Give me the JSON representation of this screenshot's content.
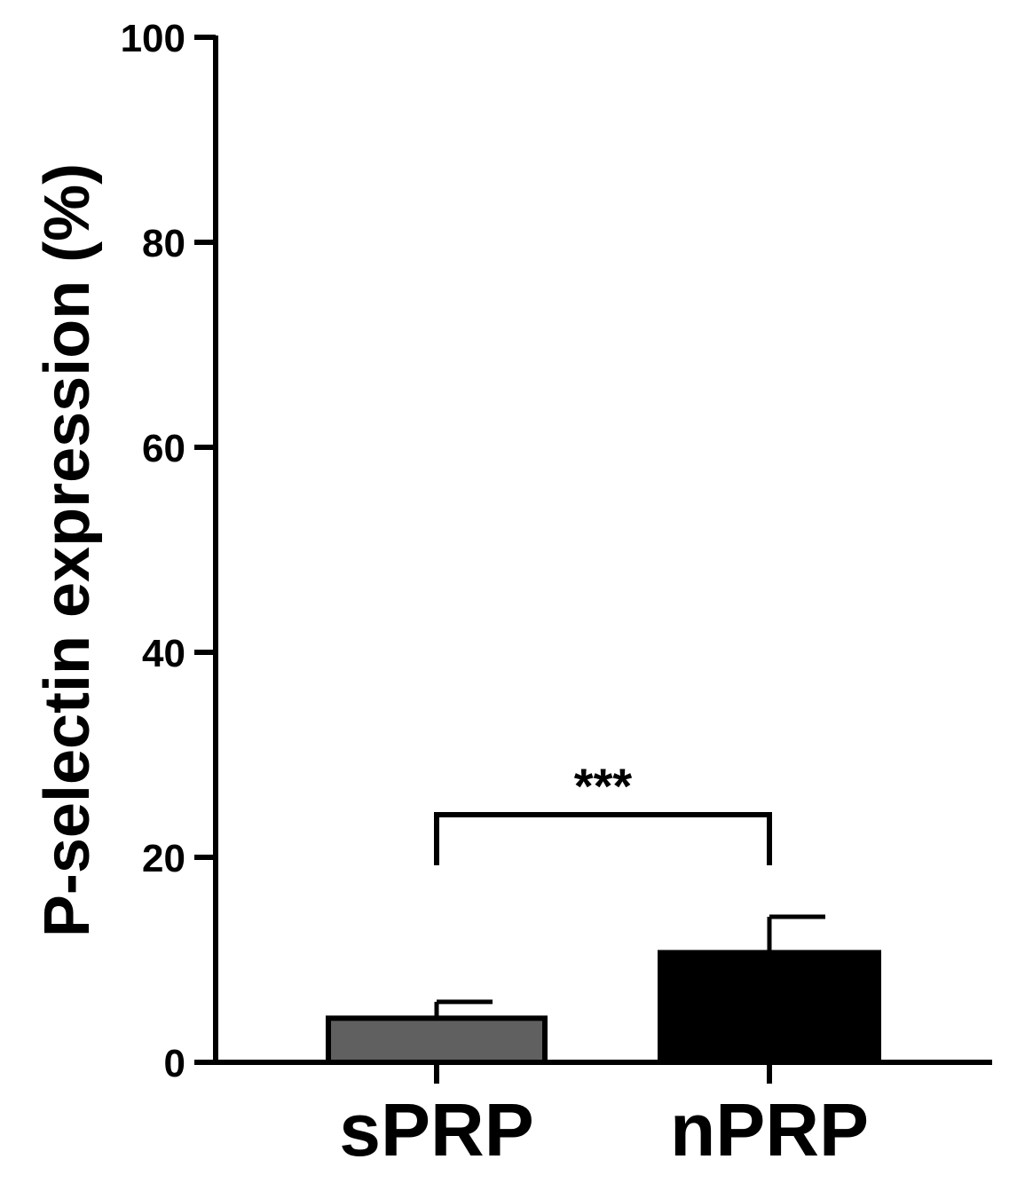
{
  "chart_data": {
    "type": "bar",
    "ylabel": "P-selectin expression (%)",
    "xlabel": "",
    "ylim": [
      0,
      100
    ],
    "yticks": [
      "0",
      "20",
      "40",
      "60",
      "80",
      "100"
    ],
    "categories": [
      "sPRP",
      "nPRP"
    ],
    "values": [
      4.3,
      10.7
    ],
    "errors": [
      1.6,
      3.5
    ],
    "colors": [
      "#606060",
      "#000000"
    ],
    "significance": {
      "label": "***",
      "between": [
        "sPRP",
        "nPRP"
      ]
    },
    "grid": false,
    "legend": "none"
  }
}
